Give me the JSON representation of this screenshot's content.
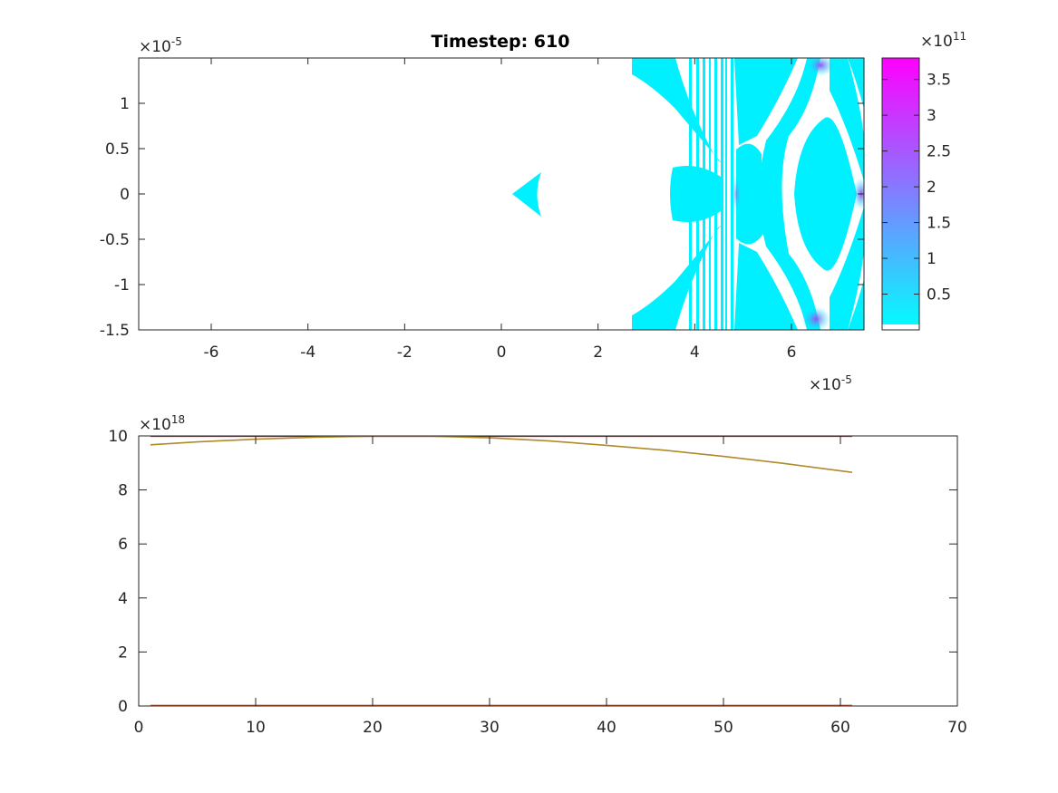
{
  "chart_data": [
    {
      "type": "heatmap",
      "title": "Timestep: 610",
      "xlim": [
        -7.5,
        7.5
      ],
      "ylim": [
        -1.5,
        1.5
      ],
      "x_ticks": [
        -6,
        -4,
        -2,
        0,
        2,
        4,
        6
      ],
      "x_tick_labels": [
        "-6",
        "-4",
        "-2",
        "0",
        "2",
        "4",
        "6"
      ],
      "y_ticks": [
        1,
        0.5,
        0,
        -0.5,
        -1,
        -1.5
      ],
      "y_tick_labels": [
        "1",
        "0.5",
        "0",
        "-0.5",
        "-1",
        "-1.5"
      ],
      "x_exponent_base": "×10",
      "x_exponent_power": "-5",
      "y_exponent_base": "×10",
      "y_exponent_power": "-5",
      "colormap": [
        "#ffffff",
        "#00ffff",
        "#ff00ff"
      ],
      "colorbar": {
        "clim": [
          0,
          3.8
        ],
        "ticks": [
          0.5,
          1,
          1.5,
          2,
          2.5,
          3,
          3.5
        ],
        "tick_labels": [
          "0.5",
          "1",
          "1.5",
          "2",
          "2.5",
          "3",
          "3.5"
        ],
        "exponent_base": "×10",
        "exponent_power": "11"
      }
    },
    {
      "type": "line",
      "xlim": [
        0,
        70
      ],
      "ylim": [
        0,
        10
      ],
      "x_ticks": [
        0,
        10,
        20,
        30,
        40,
        50,
        60,
        70
      ],
      "x_tick_labels": [
        "0",
        "10",
        "20",
        "30",
        "40",
        "50",
        "60",
        "70"
      ],
      "y_ticks": [
        0,
        2,
        4,
        6,
        8,
        10
      ],
      "y_tick_labels": [
        "0",
        "2",
        "4",
        "6",
        "8",
        "10"
      ],
      "y_exponent_base": "×10",
      "y_exponent_power": "18",
      "series": [
        {
          "color": "#ff0000",
          "x": [
            1,
            10,
            20,
            30,
            40,
            50,
            61
          ],
          "y": [
            10,
            10,
            10,
            10,
            10,
            10,
            10
          ]
        },
        {
          "color": "#b08a2a",
          "x": [
            1,
            5,
            10,
            15,
            20,
            25,
            30,
            35,
            40,
            45,
            50,
            55,
            61
          ],
          "y": [
            9.67,
            9.78,
            9.88,
            9.95,
            9.99,
            9.99,
            9.93,
            9.82,
            9.65,
            9.47,
            9.24,
            8.99,
            8.65
          ]
        },
        {
          "color": "#d95319",
          "x": [
            1,
            10,
            20,
            30,
            40,
            50,
            61
          ],
          "y": [
            0.02,
            0.02,
            0.02,
            0.02,
            0.02,
            0.02,
            0.02
          ]
        }
      ]
    }
  ]
}
